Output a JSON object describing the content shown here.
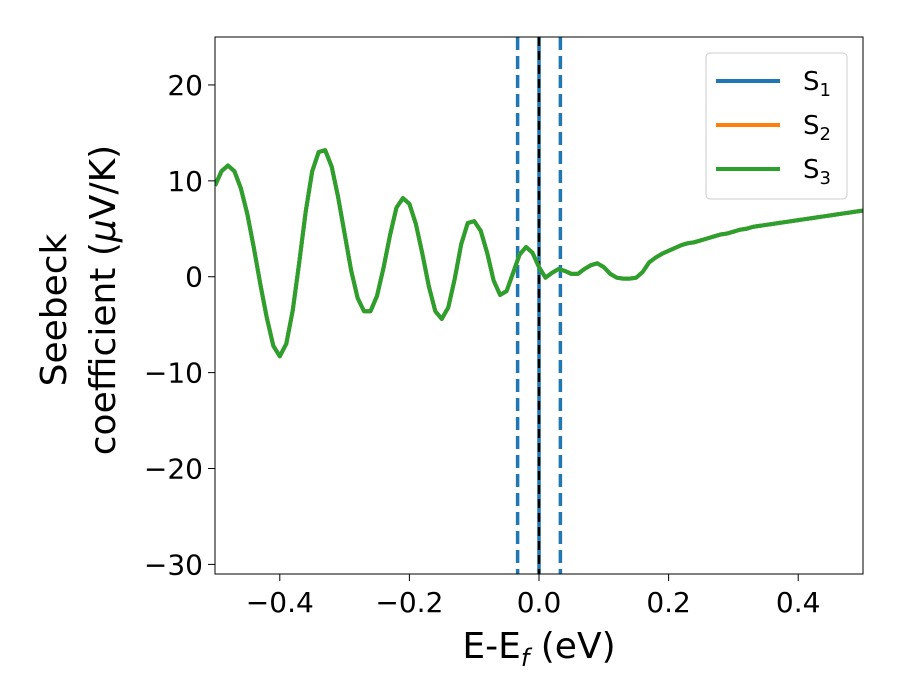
{
  "chart_data": {
    "type": "line",
    "xlabel_main": "E-E",
    "xlabel_sub": "f",
    "xlabel_unit": " (eV)",
    "ylabel_line1": "Seebeck",
    "ylabel_line2": "coefficient  (",
    "ylabel_mu": "μ",
    "ylabel_unit": "V/K)",
    "xlim": [
      -0.5,
      0.5
    ],
    "ylim": [
      -31,
      25
    ],
    "xticks": [
      -0.4,
      -0.2,
      0.0,
      0.2,
      0.4
    ],
    "xtick_labels": [
      "−0.4",
      "−0.2",
      "0.0",
      "0.2",
      "0.4"
    ],
    "yticks": [
      -30,
      -20,
      -10,
      0,
      10,
      20
    ],
    "ytick_labels": [
      "−30",
      "−20",
      "−10",
      "0",
      "10",
      "20"
    ],
    "legend_position": "top-right",
    "vlines": [
      {
        "x": -0.033,
        "color": "#1f77b4",
        "style": "dashed"
      },
      {
        "x": 0.0,
        "color": "#1f77b4",
        "style": "solid"
      },
      {
        "x": 0.0,
        "color": "#000000",
        "style": "dashed"
      },
      {
        "x": 0.033,
        "color": "#1f77b4",
        "style": "dashed"
      }
    ],
    "series": [
      {
        "name_main": "S",
        "name_sub": "1",
        "color": "#1f77b4"
      },
      {
        "name_main": "S",
        "name_sub": "2",
        "color": "#ff7f0e"
      },
      {
        "name_main": "S",
        "name_sub": "3",
        "color": "#2ca02c"
      }
    ],
    "x": [
      -0.5,
      -0.49,
      -0.48,
      -0.47,
      -0.46,
      -0.45,
      -0.44,
      -0.43,
      -0.42,
      -0.41,
      -0.4,
      -0.39,
      -0.38,
      -0.37,
      -0.36,
      -0.35,
      -0.34,
      -0.33,
      -0.32,
      -0.31,
      -0.3,
      -0.29,
      -0.28,
      -0.27,
      -0.26,
      -0.25,
      -0.24,
      -0.23,
      -0.22,
      -0.21,
      -0.2,
      -0.19,
      -0.18,
      -0.17,
      -0.16,
      -0.15,
      -0.14,
      -0.13,
      -0.12,
      -0.11,
      -0.1,
      -0.09,
      -0.08,
      -0.07,
      -0.06,
      -0.05,
      -0.04,
      -0.03,
      -0.02,
      -0.01,
      0.0,
      0.01,
      0.02,
      0.03,
      0.04,
      0.05,
      0.06,
      0.07,
      0.08,
      0.09,
      0.1,
      0.11,
      0.12,
      0.13,
      0.14,
      0.15,
      0.16,
      0.17,
      0.18,
      0.19,
      0.2,
      0.21,
      0.22,
      0.23,
      0.24,
      0.25,
      0.26,
      0.27,
      0.28,
      0.29,
      0.3,
      0.31,
      0.32,
      0.33,
      0.34,
      0.35,
      0.36,
      0.37,
      0.38,
      0.39,
      0.4,
      0.41,
      0.42,
      0.43,
      0.44,
      0.45,
      0.46,
      0.47,
      0.48,
      0.49,
      0.5
    ],
    "y": [
      9.5,
      11.0,
      11.6,
      11.0,
      9.2,
      6.5,
      3.0,
      -0.8,
      -4.3,
      -7.2,
      -8.3,
      -7.0,
      -3.5,
      1.5,
      6.8,
      11.0,
      13.0,
      13.2,
      11.5,
      8.3,
      4.5,
      0.7,
      -2.2,
      -3.6,
      -3.6,
      -2.0,
      0.9,
      4.3,
      7.2,
      8.2,
      7.6,
      5.5,
      2.4,
      -1.0,
      -3.6,
      -4.4,
      -3.2,
      -0.2,
      3.4,
      5.6,
      5.8,
      4.8,
      2.5,
      -0.4,
      -1.9,
      -1.5,
      0.4,
      2.3,
      3.1,
      2.5,
      1.0,
      -0.1,
      0.4,
      0.8,
      0.6,
      0.3,
      0.3,
      0.8,
      1.2,
      1.4,
      1.0,
      0.3,
      -0.1,
      -0.2,
      -0.2,
      -0.1,
      0.5,
      1.5,
      2.0,
      2.4,
      2.7,
      3.0,
      3.3,
      3.5,
      3.6,
      3.8,
      4.0,
      4.2,
      4.4,
      4.5,
      4.7,
      4.9,
      5.0,
      5.2,
      5.3,
      5.4,
      5.5,
      5.6,
      5.7,
      5.8,
      5.9,
      6.0,
      6.1,
      6.2,
      6.3,
      6.4,
      6.5,
      6.6,
      6.7,
      6.8,
      6.9
    ]
  }
}
